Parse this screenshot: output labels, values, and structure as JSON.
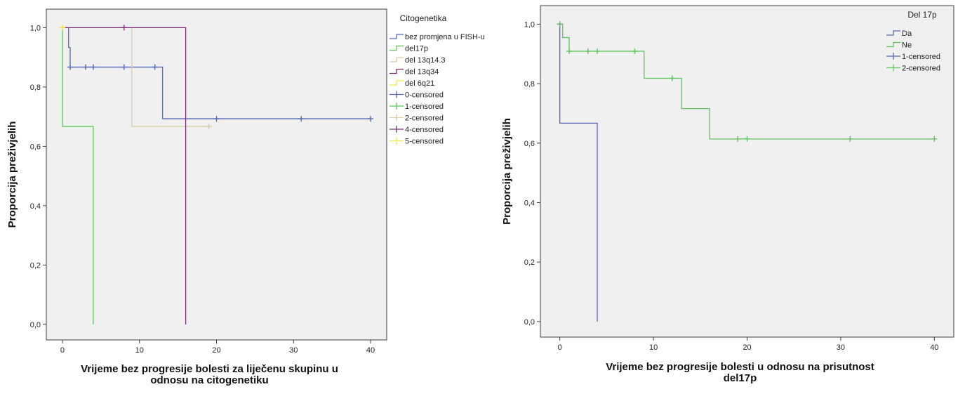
{
  "chart_data": [
    {
      "type": "line",
      "subtype": "kaplan-meier-step",
      "title": "",
      "ylabel": "Proporcija preživjelih",
      "xlabel_lines": [
        "Vrijeme bez progresije bolesti za liječenu skupinu u",
        "odnosu na citogenetiku"
      ],
      "xlim": [
        -2,
        42
      ],
      "ylim": [
        -0.05,
        1.06
      ],
      "xticks": [
        0,
        10,
        20,
        30,
        40
      ],
      "yticks": [
        0.0,
        0.2,
        0.4,
        0.6,
        0.8,
        1.0
      ],
      "ytick_labels": [
        "0,0",
        "0,2",
        "0,4",
        "0,6",
        "0,8",
        "1,0"
      ],
      "grid": false,
      "legend_title": "Citogenetika",
      "legend_position": "right",
      "series": [
        {
          "name": "bez promjena u FISH-u",
          "color": "#5468b4",
          "steps": [
            [
              0,
              1.0
            ],
            [
              0.8,
              0.933
            ],
            [
              1,
              0.867
            ],
            [
              13,
              0.693
            ],
            [
              40,
              0.693
            ]
          ],
          "censored": [
            [
              1,
              0.867
            ],
            [
              3,
              0.867
            ],
            [
              4,
              0.867
            ],
            [
              8,
              0.867
            ],
            [
              12,
              0.867
            ],
            [
              20,
              0.693
            ],
            [
              31,
              0.693
            ],
            [
              40,
              0.693
            ]
          ]
        },
        {
          "name": "del17p",
          "color": "#5cc65a",
          "steps": [
            [
              0,
              1.0
            ],
            [
              0,
              0.667
            ],
            [
              4,
              0.0
            ]
          ],
          "censored": []
        },
        {
          "name": "del 13q14.3",
          "color": "#d8cfa2",
          "steps": [
            [
              0,
              1.0
            ],
            [
              9,
              0.667
            ],
            [
              19,
              0.667
            ]
          ],
          "censored": [
            [
              19,
              0.667
            ]
          ]
        },
        {
          "name": "del 13q34",
          "color": "#7a2f78",
          "steps": [
            [
              0,
              1.0
            ],
            [
              16,
              0.0
            ]
          ],
          "censored": [
            [
              8,
              1.0
            ]
          ]
        },
        {
          "name": "del 6q21",
          "color": "#f3e24c",
          "steps": [
            [
              0,
              1.0
            ]
          ],
          "censored": [
            [
              0,
              1.0
            ]
          ]
        }
      ],
      "censored_legend": [
        {
          "name": "0-censored",
          "color": "#5468b4"
        },
        {
          "name": "1-censored",
          "color": "#5cc65a"
        },
        {
          "name": "2-censored",
          "color": "#d8cfa2"
        },
        {
          "name": "4-censored",
          "color": "#7a2f78"
        },
        {
          "name": "5-censored",
          "color": "#f3e24c"
        }
      ]
    },
    {
      "type": "line",
      "subtype": "kaplan-meier-step",
      "title": "",
      "ylabel": "Proporcija preživjelih",
      "xlabel_lines": [
        "Vrijeme bez progresije bolesti u odnosu na prisutnost",
        "del17p"
      ],
      "xlim": [
        -2,
        42
      ],
      "ylim": [
        -0.05,
        1.06
      ],
      "xticks": [
        0,
        10,
        20,
        30,
        40
      ],
      "yticks": [
        0.0,
        0.2,
        0.4,
        0.6,
        0.8,
        1.0
      ],
      "ytick_labels": [
        "0,0",
        "0,2",
        "0,4",
        "0,6",
        "0,8",
        "1,0"
      ],
      "grid": false,
      "legend_title": "Del 17p",
      "legend_position": "right",
      "series": [
        {
          "name": "Da",
          "color": "#5468b4",
          "steps": [
            [
              0,
              1.0
            ],
            [
              0,
              0.667
            ],
            [
              4,
              0.0
            ]
          ],
          "censored": [
            [
              0,
              1.0
            ]
          ]
        },
        {
          "name": "Ne",
          "color": "#5cc65a",
          "steps": [
            [
              0,
              1.0
            ],
            [
              0.3,
              0.955
            ],
            [
              1,
              0.909
            ],
            [
              9,
              0.818
            ],
            [
              13,
              0.716
            ],
            [
              16,
              0.614
            ],
            [
              40,
              0.614
            ]
          ],
          "censored": [
            [
              0,
              1.0
            ],
            [
              1,
              0.909
            ],
            [
              3,
              0.909
            ],
            [
              4,
              0.909
            ],
            [
              8,
              0.909
            ],
            [
              12,
              0.818
            ],
            [
              19,
              0.614
            ],
            [
              20,
              0.614
            ],
            [
              31,
              0.614
            ],
            [
              40,
              0.614
            ]
          ]
        }
      ],
      "censored_legend": [
        {
          "name": "1-censored",
          "color": "#5468b4"
        },
        {
          "name": "2-censored",
          "color": "#5cc65a"
        }
      ]
    }
  ]
}
